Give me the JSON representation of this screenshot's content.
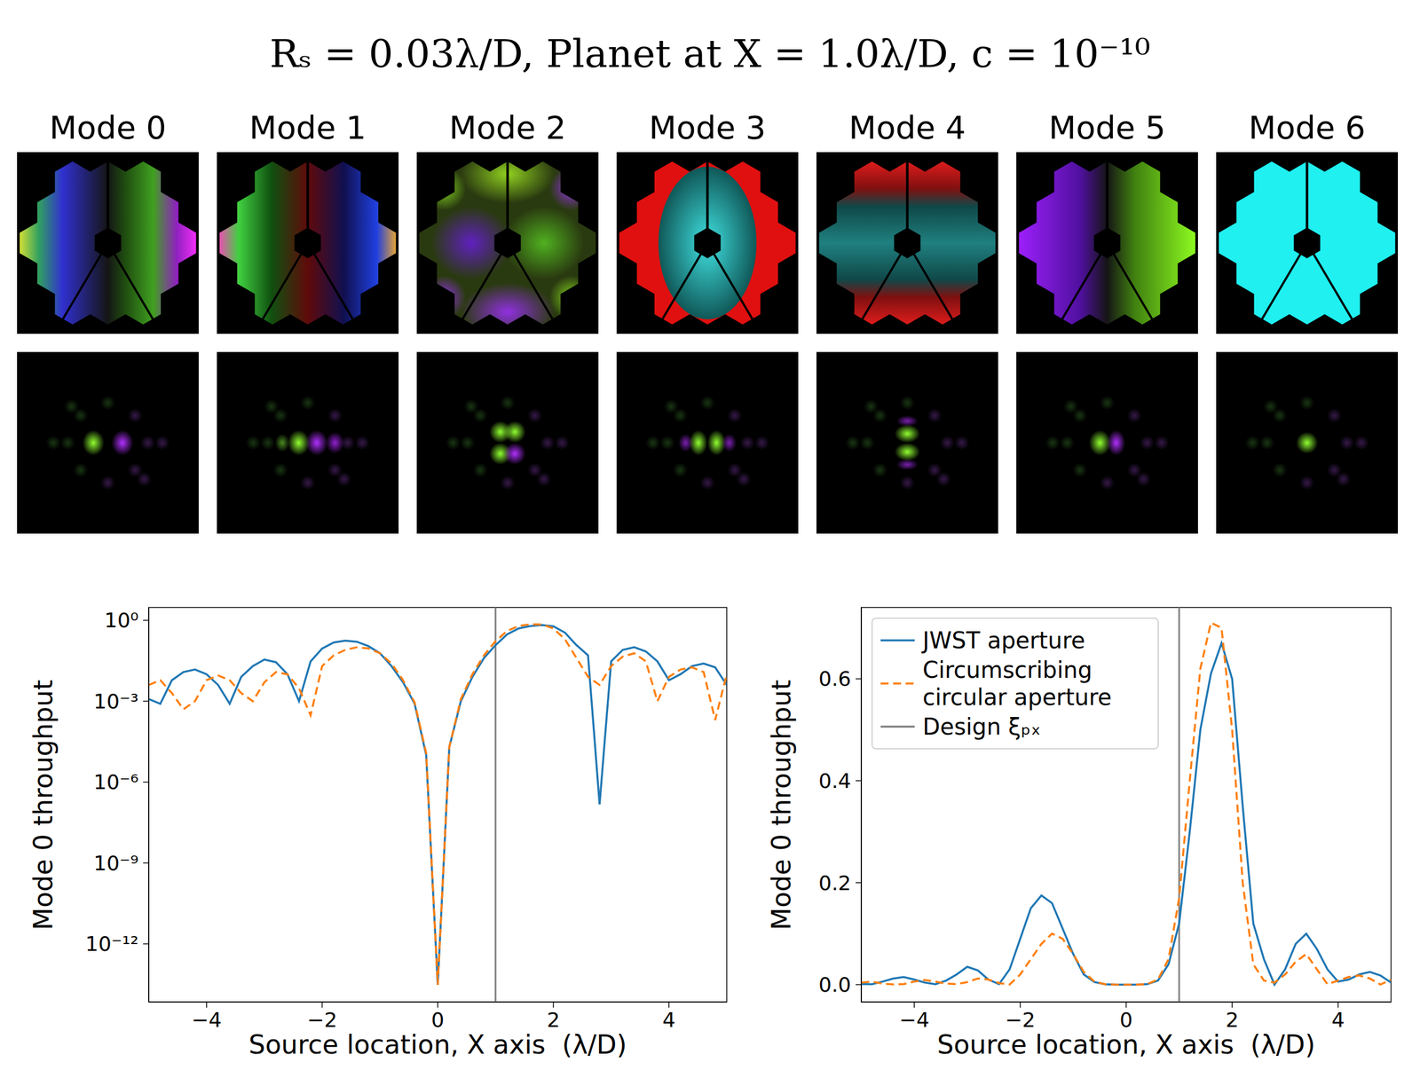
{
  "title": "Rₛ = 0.03λ/D, Planet at X = 1.0λ/D, c = 10⁻¹⁰",
  "modes": [
    "Mode 0",
    "Mode 1",
    "Mode 2",
    "Mode 3",
    "Mode 4",
    "Mode 5",
    "Mode 6"
  ],
  "chart_data": [
    {
      "type": "line",
      "log": "y",
      "xlabel": "Source location, X axis  (λ/D)",
      "ylabel": "Mode 0 throughput",
      "xlim": [
        -5,
        5
      ],
      "ylim": [
        7e-15,
        3
      ],
      "xticks": [
        {
          "value": -4,
          "label": "−4"
        },
        {
          "value": -2,
          "label": "−2"
        },
        0,
        2,
        4
      ],
      "yticks": [
        {
          "value": 1,
          "label": "10⁰"
        },
        {
          "value": 0.001,
          "label": "10⁻³"
        },
        {
          "value": 1e-06,
          "label": "10⁻⁶"
        },
        {
          "value": 1e-09,
          "label": "10⁻⁹"
        },
        {
          "value": 1e-12,
          "label": "10⁻¹²"
        }
      ],
      "vline": {
        "x": 1,
        "color": "#808080"
      },
      "x": [
        -5,
        -4.8,
        -4.6,
        -4.4,
        -4.2,
        -4,
        -3.8,
        -3.6,
        -3.4,
        -3.2,
        -3,
        -2.8,
        -2.6,
        -2.4,
        -2.2,
        -2,
        -1.8,
        -1.6,
        -1.4,
        -1.2,
        -1,
        -0.8,
        -0.6,
        -0.4,
        -0.2,
        0,
        0.2,
        0.4,
        0.6,
        0.8,
        1,
        1.2,
        1.4,
        1.6,
        1.8,
        2,
        2.2,
        2.4,
        2.6,
        2.8,
        3,
        3.2,
        3.4,
        3.6,
        3.8,
        4,
        4.2,
        4.4,
        4.6,
        4.8,
        5
      ],
      "series": [
        {
          "color": "#1f77b4",
          "line_style": "solid",
          "values": [
            0.0012,
            0.0008,
            0.006,
            0.012,
            0.015,
            0.01,
            0.004,
            0.0008,
            0.008,
            0.02,
            0.035,
            0.028,
            0.01,
            0.001,
            0.03,
            0.09,
            0.15,
            0.175,
            0.16,
            0.11,
            0.06,
            0.02,
            0.005,
            0.0008,
            1e-05,
            3e-14,
            2e-05,
            0.001,
            0.008,
            0.04,
            0.12,
            0.3,
            0.5,
            0.61,
            0.67,
            0.6,
            0.35,
            0.12,
            0.05,
            1.5e-07,
            0.03,
            0.08,
            0.1,
            0.07,
            0.03,
            0.006,
            0.01,
            0.02,
            0.025,
            0.018,
            0.004
          ]
        },
        {
          "color": "#ff7f0e",
          "line_style": "dashed",
          "values": [
            0.004,
            0.006,
            0.002,
            0.0005,
            0.001,
            0.006,
            0.009,
            0.006,
            0.002,
            0.001,
            0.005,
            0.012,
            0.01,
            0.003,
            0.0003,
            0.02,
            0.05,
            0.08,
            0.1,
            0.09,
            0.06,
            0.025,
            0.006,
            0.0009,
            1.2e-05,
            3e-14,
            2e-05,
            0.0012,
            0.01,
            0.05,
            0.17,
            0.4,
            0.62,
            0.71,
            0.7,
            0.5,
            0.2,
            0.04,
            0.008,
            0.004,
            0.02,
            0.045,
            0.06,
            0.03,
            0.001,
            0.008,
            0.015,
            0.018,
            0.012,
            0.0002,
            0.01
          ]
        }
      ]
    },
    {
      "type": "line",
      "xlabel": "Source location, X axis  (λ/D)",
      "ylabel": "Mode 0 throughput",
      "xlim": [
        -5,
        5
      ],
      "ylim": [
        -0.034,
        0.74
      ],
      "xticks": [
        {
          "value": -4,
          "label": "−4"
        },
        {
          "value": -2,
          "label": "−2"
        },
        0,
        2,
        4
      ],
      "yticks": [
        {
          "value": 0,
          "label": "0.0"
        },
        {
          "value": 0.2,
          "label": "0.2"
        },
        {
          "value": 0.4,
          "label": "0.4"
        },
        {
          "value": 0.6,
          "label": "0.6"
        }
      ],
      "legend": "upper left",
      "vline": {
        "x": 1,
        "label": "Design ξₚₓ",
        "color": "#808080"
      },
      "x": [
        -5,
        -4.8,
        -4.6,
        -4.4,
        -4.2,
        -4,
        -3.8,
        -3.6,
        -3.4,
        -3.2,
        -3,
        -2.8,
        -2.6,
        -2.4,
        -2.2,
        -2,
        -1.8,
        -1.6,
        -1.4,
        -1.2,
        -1,
        -0.8,
        -0.6,
        -0.4,
        -0.2,
        0,
        0.2,
        0.4,
        0.6,
        0.8,
        1,
        1.2,
        1.4,
        1.6,
        1.8,
        2,
        2.2,
        2.4,
        2.6,
        2.8,
        3,
        3.2,
        3.4,
        3.6,
        3.8,
        4,
        4.2,
        4.4,
        4.6,
        4.8,
        5
      ],
      "series": [
        {
          "name": "JWST aperture",
          "color": "#1f77b4",
          "line_style": "solid",
          "values": [
            0.0012,
            0.0008,
            0.006,
            0.012,
            0.015,
            0.01,
            0.004,
            0.0008,
            0.008,
            0.02,
            0.035,
            0.028,
            0.01,
            0.001,
            0.03,
            0.09,
            0.15,
            0.175,
            0.16,
            0.11,
            0.06,
            0.02,
            0.005,
            0.0008,
            1e-05,
            3e-14,
            2e-05,
            0.001,
            0.008,
            0.04,
            0.12,
            0.3,
            0.5,
            0.61,
            0.67,
            0.6,
            0.35,
            0.12,
            0.05,
            1.5e-07,
            0.03,
            0.08,
            0.1,
            0.07,
            0.03,
            0.006,
            0.01,
            0.02,
            0.025,
            0.018,
            0.004
          ]
        },
        {
          "name": "Circumscribing circular aperture",
          "color": "#ff7f0e",
          "line_style": "dashed",
          "values": [
            0.004,
            0.006,
            0.002,
            0.0005,
            0.001,
            0.006,
            0.009,
            0.006,
            0.002,
            0.001,
            0.005,
            0.012,
            0.01,
            0.003,
            0.0003,
            0.02,
            0.05,
            0.08,
            0.1,
            0.09,
            0.06,
            0.025,
            0.006,
            0.0009,
            1.2e-05,
            3e-14,
            2e-05,
            0.0012,
            0.01,
            0.05,
            0.17,
            0.4,
            0.62,
            0.71,
            0.7,
            0.5,
            0.2,
            0.04,
            0.008,
            0.004,
            0.02,
            0.045,
            0.06,
            0.03,
            0.001,
            0.008,
            0.015,
            0.018,
            0.012,
            0.0002,
            0.01
          ]
        }
      ]
    }
  ]
}
